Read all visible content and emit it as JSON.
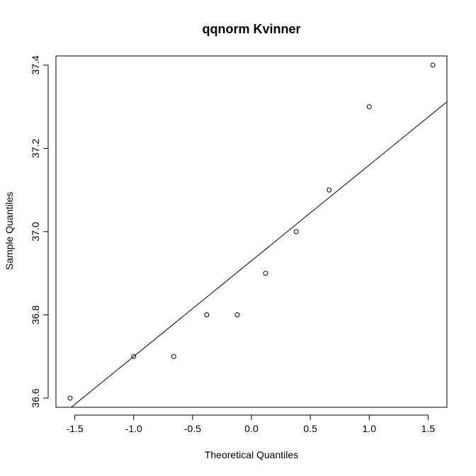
{
  "chart_data": {
    "type": "scatter",
    "title": "qqnorm Kvinner",
    "xlabel": "Theoretical Quantiles",
    "ylabel": "Sample Quantiles",
    "xlim": [
      -1.66,
      1.66
    ],
    "ylim": [
      36.578,
      37.422
    ],
    "xticks": [
      "-1.5",
      "-1.0",
      "-0.5",
      "0.0",
      "0.5",
      "1.0",
      "1.5"
    ],
    "yticks": [
      "36.6",
      "36.8",
      "37.0",
      "37.2",
      "37.4"
    ],
    "grid": false,
    "points": [
      {
        "x": -1.54,
        "y": 36.6
      },
      {
        "x": -1.0,
        "y": 36.7
      },
      {
        "x": -0.66,
        "y": 36.7
      },
      {
        "x": -0.38,
        "y": 36.8
      },
      {
        "x": -0.12,
        "y": 36.8
      },
      {
        "x": 0.12,
        "y": 36.9
      },
      {
        "x": 0.38,
        "y": 37.0
      },
      {
        "x": 0.66,
        "y": 37.1
      },
      {
        "x": 1.0,
        "y": 37.3
      },
      {
        "x": 1.54,
        "y": 37.4
      }
    ],
    "reference_line": {
      "intercept": 36.93,
      "slope": 0.23
    }
  }
}
